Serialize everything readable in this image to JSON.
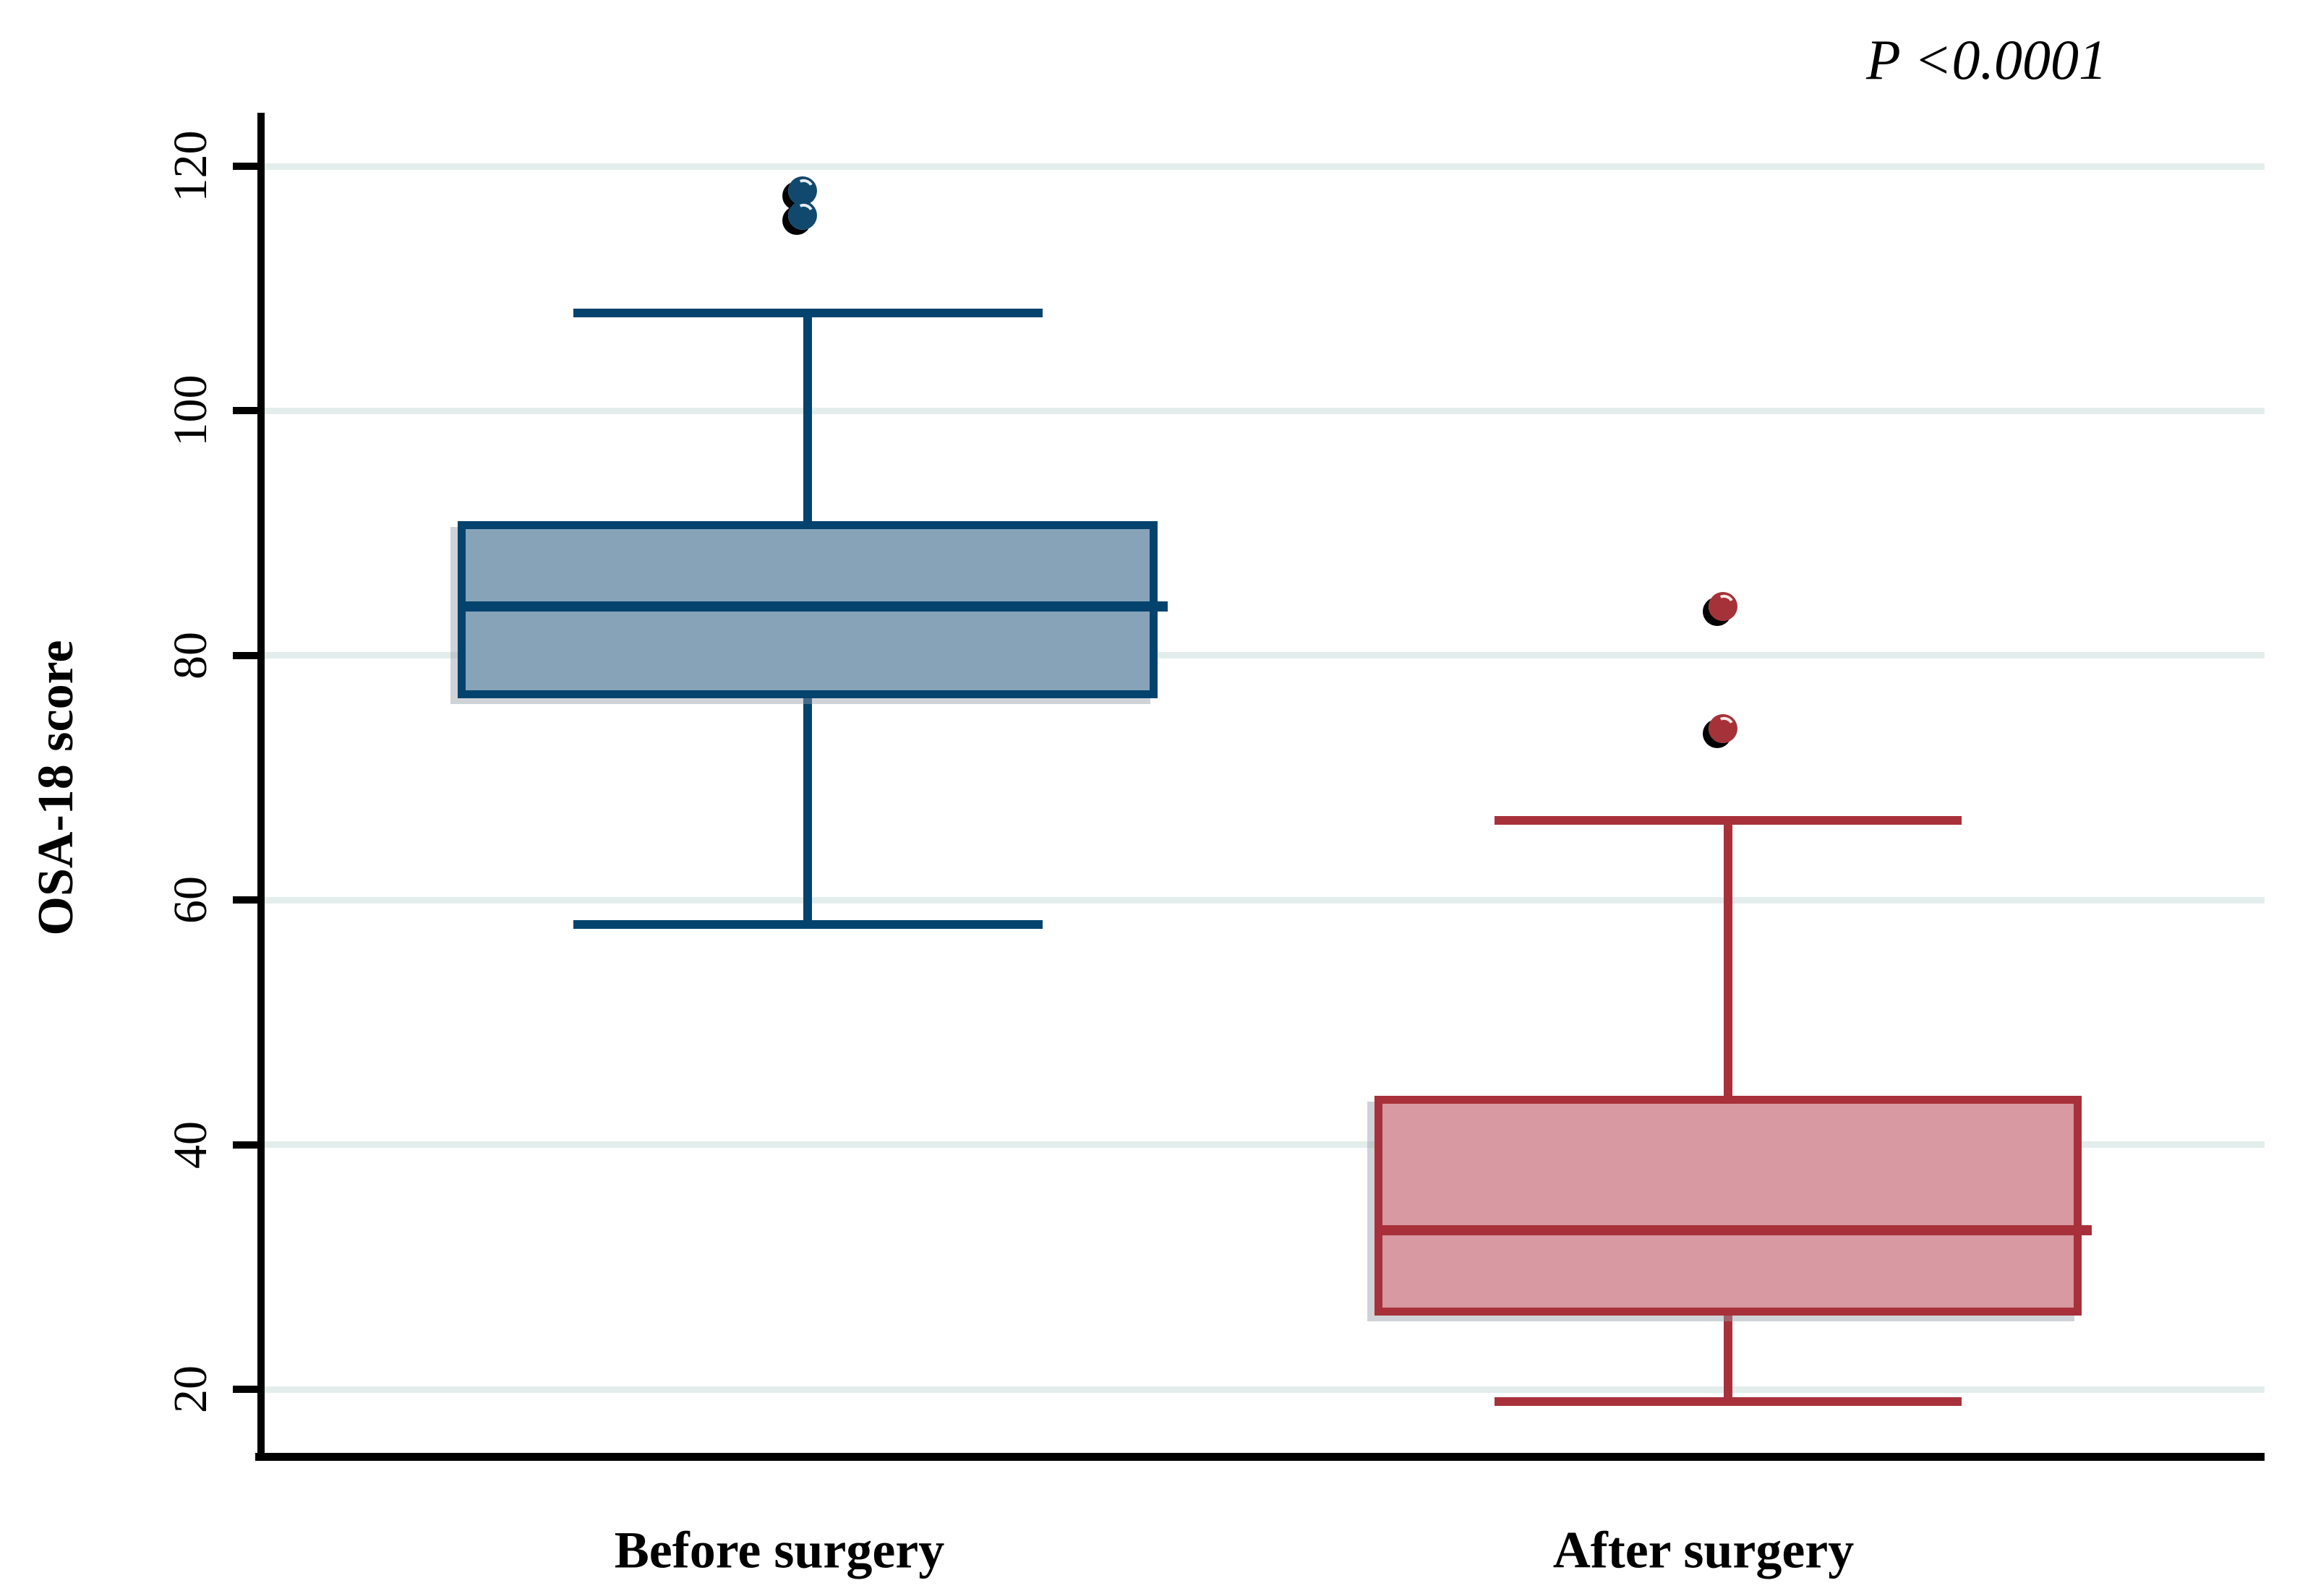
{
  "chart_data": {
    "type": "box",
    "title": "",
    "xlabel": "",
    "ylabel": "OSA-18 score",
    "annotation": "P <0.0001",
    "y_axis": {
      "ticks": [
        20,
        40,
        60,
        80,
        100,
        120
      ],
      "range": [
        15,
        124
      ],
      "grid": true
    },
    "categories": [
      "Before surgery",
      "After surgery"
    ],
    "groups": [
      {
        "label": "Before surgery",
        "whisker_low": 58,
        "q1": 76.5,
        "median": 84,
        "q3": 91,
        "whisker_high": 108,
        "outliers": [
          118,
          116
        ],
        "fill_color": "#86A3B8",
        "line_color": "#04436E",
        "dot_color": "#11496E"
      },
      {
        "label": "After surgery",
        "whisker_low": 19,
        "q1": 26,
        "median": 33,
        "q3": 44,
        "whisker_high": 66.5,
        "outliers": [
          84,
          74
        ],
        "fill_color": "#D899A2",
        "line_color": "#A8303A",
        "dot_color": "#A53238"
      }
    ],
    "grid_color": "#E3EEEC",
    "legend": null
  }
}
